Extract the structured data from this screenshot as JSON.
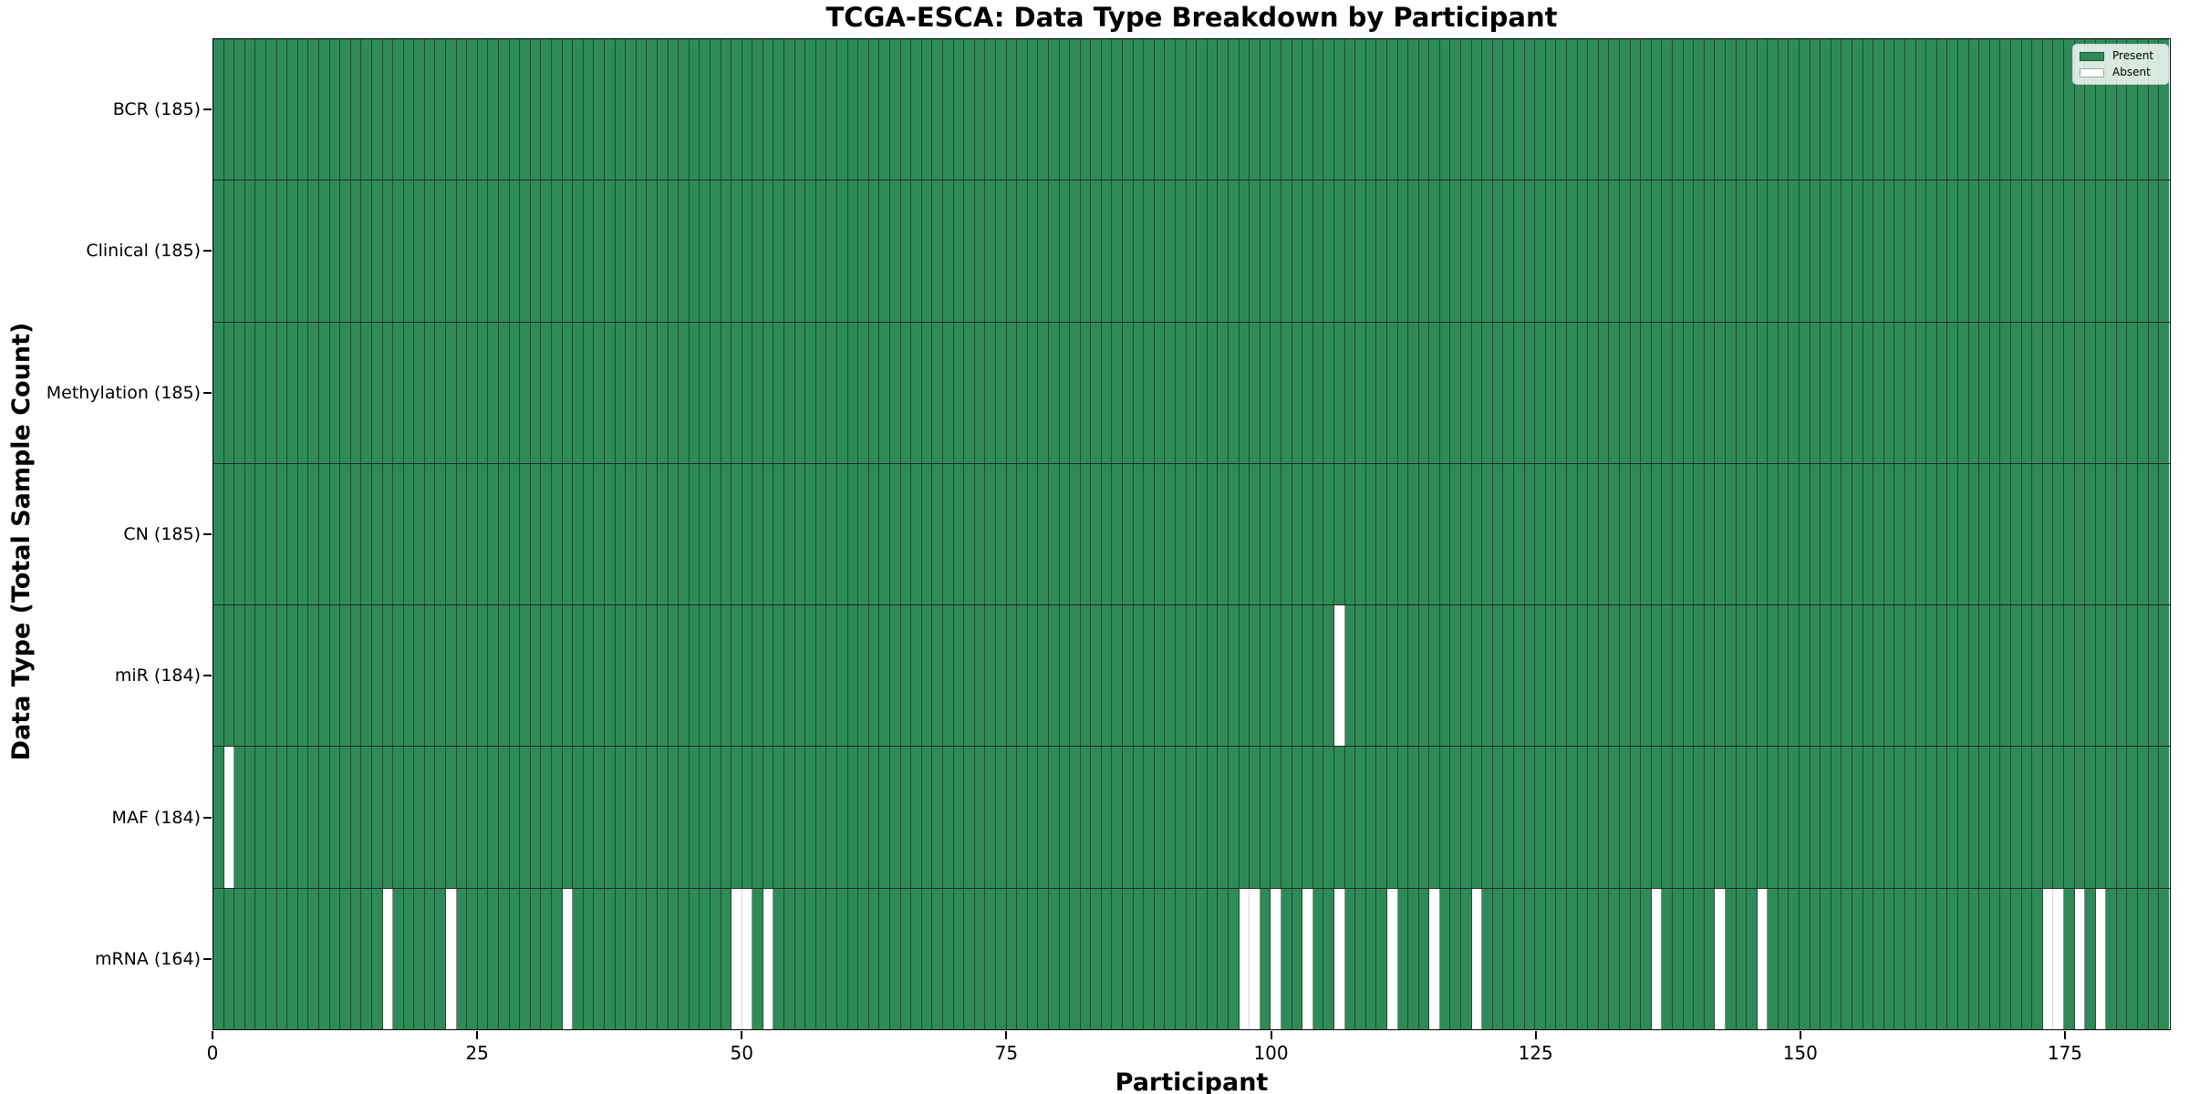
{
  "chart_data": {
    "type": "heatmap",
    "title": "TCGA-ESCA: Data Type Breakdown by Participant",
    "xlabel": "Participant",
    "ylabel": "Data Type (Total Sample Count)",
    "x_ticks": [
      0,
      25,
      50,
      75,
      100,
      125,
      150,
      175
    ],
    "x_range": [
      0,
      185
    ],
    "n_participants": 185,
    "grid": "cell-edges",
    "rows": [
      {
        "name": "BCR",
        "label": "BCR (185)",
        "total": 185,
        "absent": []
      },
      {
        "name": "Clinical",
        "label": "Clinical (185)",
        "total": 185,
        "absent": []
      },
      {
        "name": "Methylation",
        "label": "Methylation (185)",
        "total": 185,
        "absent": []
      },
      {
        "name": "CN",
        "label": "CN (185)",
        "total": 185,
        "absent": []
      },
      {
        "name": "miR",
        "label": "miR (184)",
        "total": 184,
        "absent": [
          106
        ]
      },
      {
        "name": "MAF",
        "label": "MAF (184)",
        "total": 184,
        "absent": [
          1
        ]
      },
      {
        "name": "mRNA",
        "label": "mRNA (164)",
        "total": 164,
        "absent": [
          16,
          22,
          33,
          49,
          50,
          52,
          97,
          98,
          100,
          103,
          106,
          111,
          115,
          119,
          136,
          142,
          146,
          173,
          174,
          176,
          178
        ]
      }
    ],
    "legend": {
      "position": "upper right",
      "entries": [
        {
          "label": "Present",
          "color": "#2e8b57"
        },
        {
          "label": "Absent",
          "color": "#ffffff"
        }
      ]
    },
    "colors": {
      "present": "#2e8b57",
      "absent": "#ffffff",
      "cell_edge": "rgba(0,0,0,0.45)",
      "row_divider": "rgba(0,0,0,0.85)",
      "frame": "#000000"
    }
  }
}
